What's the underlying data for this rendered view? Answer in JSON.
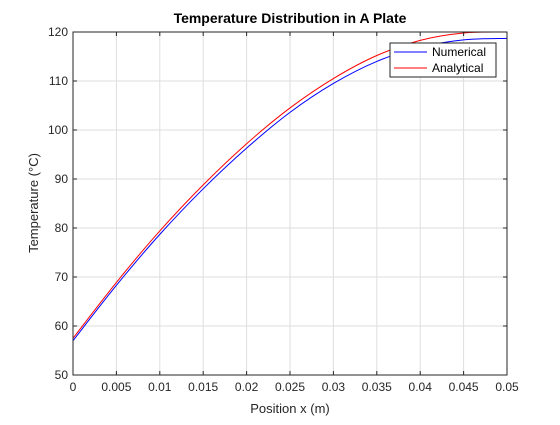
{
  "chart_data": {
    "type": "line",
    "title": "Temperature Distribution in A Plate",
    "xlabel": "Position x (m)",
    "ylabel": "Temperature (°C)",
    "xlim": [
      0,
      0.05
    ],
    "ylim": [
      50,
      120
    ],
    "xticks": [
      0,
      0.005,
      0.01,
      0.015,
      0.02,
      0.025,
      0.03,
      0.035,
      0.04,
      0.045,
      0.05
    ],
    "xtick_labels": [
      "0",
      "0.005",
      "0.01",
      "0.015",
      "0.02",
      "0.025",
      "0.03",
      "0.035",
      "0.04",
      "0.045",
      "0.05"
    ],
    "yticks": [
      50,
      60,
      70,
      80,
      90,
      100,
      110,
      120
    ],
    "ytick_labels": [
      "50",
      "60",
      "70",
      "80",
      "90",
      "100",
      "110",
      "120"
    ],
    "grid": true,
    "legend_position": "top-right",
    "x": [
      0,
      0.005,
      0.01,
      0.015,
      0.02,
      0.025,
      0.03,
      0.035,
      0.04,
      0.045,
      0.05
    ],
    "series": [
      {
        "name": "Numerical",
        "color": "#0000ff",
        "values": [
          57.0,
          68.3,
          78.7,
          88.0,
          96.3,
          103.6,
          109.5,
          114.0,
          116.9,
          118.4,
          118.7
        ]
      },
      {
        "name": "Analytical",
        "color": "#ff0000",
        "values": [
          57.5,
          68.9,
          79.4,
          88.8,
          97.2,
          104.5,
          110.5,
          115.2,
          118.3,
          119.8,
          120.0
        ]
      }
    ]
  }
}
